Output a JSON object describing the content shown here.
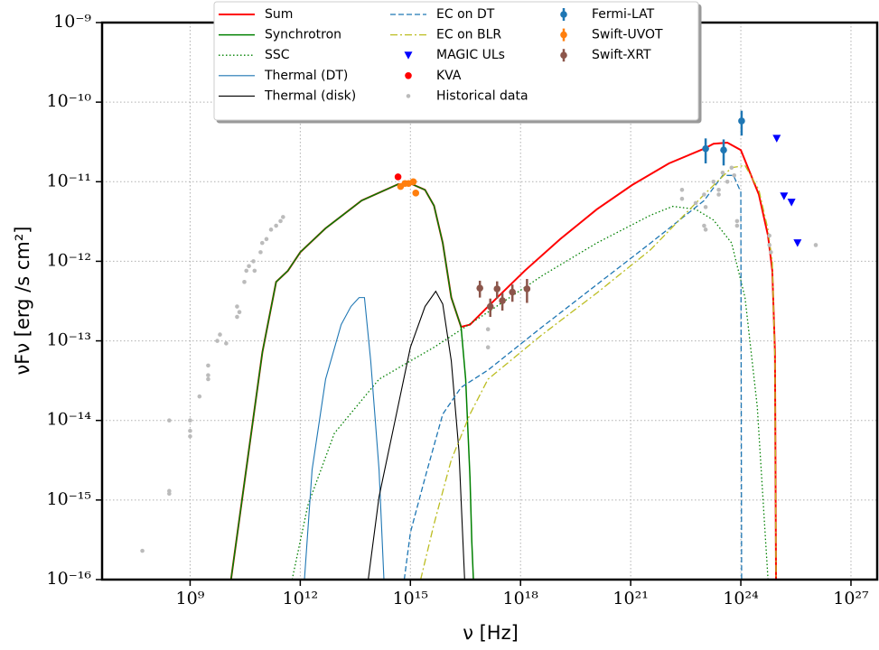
{
  "chart_data": {
    "type": "line",
    "xscale": "log",
    "yscale": "log",
    "grid": true,
    "xlabel": "ν [Hz]",
    "ylabel": "νFν [erg /s cm²]",
    "xlim": [
      4000000.0,
      5.8e+27
    ],
    "ylim": [
      1e-16,
      1e-09
    ],
    "xticks": [
      {
        "value": 1000000000.0,
        "label": "10⁹"
      },
      {
        "value": 1000000000000.0,
        "label": "10¹²"
      },
      {
        "value": 1000000000000000.0,
        "label": "10¹⁵"
      },
      {
        "value": 1e+18,
        "label": "10¹⁸"
      },
      {
        "value": 1e+21,
        "label": "10²¹"
      },
      {
        "value": 1e+24,
        "label": "10²⁴"
      },
      {
        "value": 1e+27,
        "label": "10²⁷"
      }
    ],
    "yticks": [
      {
        "value": 1e-16,
        "label": "10⁻¹⁶"
      },
      {
        "value": 1e-15,
        "label": "10⁻¹⁵"
      },
      {
        "value": 1e-14,
        "label": "10⁻¹⁴"
      },
      {
        "value": 1e-13,
        "label": "10⁻¹³"
      },
      {
        "value": 1e-12,
        "label": "10⁻¹²"
      },
      {
        "value": 1e-11,
        "label": "10⁻¹¹"
      },
      {
        "value": 1e-10,
        "label": "10⁻¹⁰"
      },
      {
        "value": 1e-09,
        "label": "10⁻⁹"
      }
    ],
    "legend": "upper center",
    "series": [
      {
        "name": "Sum",
        "color": "#ff0000",
        "style": "solid",
        "width": 2,
        "x": [
          13000000000.0,
          93000000000.0,
          220000000000.0,
          460000000000.0,
          1000000000000.0,
          4900000000000.0,
          47000000000000.0,
          460000000000000.0,
          1000000000000000.0,
          2500000000000000.0,
          4400000000000000.0,
          7600000000000000.0,
          1.3e+16,
          2.4e+16,
          4.2e+16,
          1.3e+17,
          1.3e+18,
          1.2e+19,
          1.2e+20,
          1.1e+21,
          1.1e+22,
          1e+23,
          1.8e+23,
          4.3e+23,
          1e+24,
          3.1e+24,
          5.5e+24,
          7.2e+24,
          8.5e+24,
          9.1e+24
        ],
        "values": [
          1e-16,
          7.2e-14,
          5.5e-13,
          7.6e-13,
          1.3e-12,
          2.6e-12,
          5.8e-12,
          9.3e-12,
          9.5e-12,
          7.9e-12,
          5e-12,
          1.7e-12,
          3.5e-13,
          1.5e-13,
          1.6e-13,
          2.7e-13,
          7.6e-13,
          1.9e-12,
          4.5e-12,
          9.1e-12,
          1.7e-11,
          2.6e-11,
          3e-11,
          3.1e-11,
          2.5e-11,
          6.9e-12,
          2.1e-12,
          7.6e-13,
          7.2e-14,
          1e-16
        ]
      },
      {
        "name": "Synchrotron",
        "color": "#008000",
        "style": "solid",
        "width": 1.5,
        "x": [
          13000000000.0,
          93000000000.0,
          220000000000.0,
          460000000000.0,
          1000000000000.0,
          4900000000000.0,
          47000000000000.0,
          460000000000000.0,
          1000000000000000.0,
          2500000000000000.0,
          4400000000000000.0,
          7600000000000000.0,
          1.3e+16,
          2.4e+16,
          3.2e+16,
          4.2e+16,
          4.7e+16,
          5.2e+16
        ],
        "values": [
          1e-16,
          7.2e-14,
          5.5e-13,
          7.6e-13,
          1.3e-12,
          2.6e-12,
          5.8e-12,
          9.3e-12,
          9.5e-12,
          7.9e-12,
          5e-12,
          1.7e-12,
          3.5e-13,
          1.5e-13,
          3.3e-14,
          1.9e-15,
          3e-16,
          1e-16
        ]
      },
      {
        "name": "SSC",
        "color": "#008000",
        "style": "dotted",
        "width": 1.3,
        "x": [
          600000000000.0,
          1600000000000.0,
          8500000000000.0,
          140000000000000.0,
          4400000000000000.0,
          1.3e+17,
          3.9e+18,
          1.2e+20,
          3.5e+21,
          1.4e+22,
          5.9e+22,
          1.8e+23,
          5.6e+23,
          1.3e+24,
          2.8e+24,
          5.5e+24
        ],
        "values": [
          1e-16,
          8.5e-16,
          6.9e-15,
          3.3e-14,
          8.3e-14,
          2.3e-13,
          6.6e-13,
          1.7e-12,
          3.8e-12,
          4.9e-12,
          4.5e-12,
          3.3e-12,
          1.7e-12,
          3.5e-13,
          1.5e-14,
          1e-16
        ]
      },
      {
        "name": "Thermal (DT)",
        "color": "#1f77b4",
        "style": "solid",
        "width": 1.1,
        "x": [
          1300000000000.0,
          2100000000000.0,
          4900000000000.0,
          13000000000000.0,
          24000000000000.0,
          40000000000000.0,
          56000000000000.0,
          83000000000000.0,
          140000000000000.0,
          190000000000000.0
        ],
        "values": [
          1e-16,
          2.4e-15,
          3.3e-14,
          1.6e-13,
          2.7e-13,
          3.5e-13,
          3.5e-13,
          5.6e-14,
          2.4e-15,
          1e-16
        ]
      },
      {
        "name": "Thermal (disk)",
        "color": "#000000",
        "style": "solid",
        "width": 1.1,
        "x": [
          71000000000000.0,
          140000000000000.0,
          460000000000000.0,
          1000000000000000.0,
          2500000000000000.0,
          4900000000000000.0,
          7600000000000000.0,
          1.3e+16,
          2.1e+16,
          3e+16
        ],
        "values": [
          1e-16,
          1.1e-15,
          1.5e-14,
          8.3e-14,
          2.7e-13,
          4.2e-13,
          2.9e-13,
          5.6e-14,
          4.1e-15,
          1e-16
        ]
      },
      {
        "name": "EC on DT",
        "color": "#1f77b4",
        "style": "dashed",
        "width": 1.3,
        "x": [
          680000000000000.0,
          1000000000000000.0,
          2500000000000000.0,
          7600000000000000.0,
          2.4e+16,
          1.3e+17,
          3.9e+18,
          1.2e+20,
          3.5e+21,
          1e+23,
          3.2e+23,
          6.3e+23,
          1e+24,
          1.05e+24
        ],
        "values": [
          1e-16,
          3.9e-16,
          1.9e-15,
          1.2e-14,
          2.6e-14,
          4.3e-14,
          1.5e-13,
          5.1e-13,
          1.7e-12,
          5.8e-12,
          1.2e-11,
          1.2e-11,
          7.4e-12,
          1e-16
        ]
      },
      {
        "name": "EC on BLR",
        "color": "#bcbd22",
        "style": "dashdot",
        "width": 1.3,
        "x": [
          1900000000000000.0,
          4400000000000000.0,
          1.3e+16,
          4.2e+16,
          1.3e+17,
          3.9e+18,
          1.2e+20,
          3.5e+21,
          1e+23,
          5.6e+23,
          1.3e+24,
          3.1e+24,
          5.5e+24,
          7.2e+24,
          8.5e+24,
          9.1e+24
        ],
        "values": [
          1e-16,
          5e-16,
          3.2e-15,
          1.2e-14,
          3.3e-14,
          1.2e-13,
          4e-13,
          1.4e-12,
          6.9e-12,
          1.5e-11,
          1.6e-11,
          7.9e-12,
          2.5e-12,
          9.8e-13,
          5.6e-14,
          1e-16
        ]
      },
      {
        "name": "MAGIC ULs",
        "color": "#0000ff",
        "marker": "triangle-down",
        "x": [
          9.5e+24,
          1.5e+25,
          2.4e+25,
          3.5e+25
        ],
        "values": [
          3.5e-11,
          6.6e-12,
          5.5e-12,
          1.7e-12
        ]
      },
      {
        "name": "KVA",
        "color": "#ff0000",
        "marker": "circle",
        "x": [
          460000000000000.0
        ],
        "values": [
          1.15e-11
        ]
      },
      {
        "name": "Historical data",
        "color": "#bbbbbb",
        "marker": "dot",
        "x": [
          50000000.0,
          270000000.0,
          270000000.0,
          270000000.0,
          1000000000.0,
          1000000000.0,
          1000000000.0,
          1800000000.0,
          3100000000.0,
          3100000000.0,
          3100000000.0,
          5500000000.0,
          6500000000.0,
          9600000000.0,
          19000000000.0,
          19000000000.0,
          22000000000.0,
          30000000000.0,
          34000000000.0,
          40000000000.0,
          53000000000.0,
          57000000000.0,
          83000000000.0,
          92000000000.0,
          120000000000.0,
          160000000000.0,
          220000000000.0,
          290000000000.0,
          340000000000.0,
          1.3e+17,
          1.3e+17,
          2.5e+22,
          2.5e+22,
          5.9e+22,
          1e+23,
          1e+23,
          1.1e+23,
          1.1e+23,
          1.8e+23,
          2.5e+23,
          2.5e+23,
          3.2e+23,
          4.3e+23,
          5.6e+23,
          6.6e+23,
          7.9e+23,
          7.9e+23,
          6e+24,
          6e+24,
          6.6e+24,
          1.1e+26
        ],
        "values": [
          2.3e-16,
          1e-14,
          1.3e-15,
          1.2e-15,
          1e-14,
          7.4e-15,
          6.3e-15,
          2e-14,
          4.9e-14,
          3.7e-14,
          3.3e-14,
          1e-13,
          1.2e-13,
          9.3e-14,
          2e-13,
          2.7e-13,
          2.3e-13,
          5.5e-13,
          7.6e-13,
          8.7e-13,
          1e-12,
          7.6e-13,
          1.3e-12,
          1.7e-12,
          1.9e-12,
          2.5e-12,
          2.8e-12,
          3.2e-12,
          3.6e-12,
          1.4e-13,
          8.3e-14,
          7.9e-12,
          6.1e-12,
          5.4e-12,
          6.9e-12,
          2.8e-12,
          2.5e-12,
          4.8e-12,
          1e-11,
          7.9e-12,
          6.9e-12,
          1.3e-11,
          1e-11,
          1.5e-11,
          1.2e-11,
          3.2e-12,
          2.8e-12,
          2.1e-12,
          1.6e-12,
          1.3e-12,
          1.6e-12
        ]
      },
      {
        "name": "Fermi-LAT",
        "color": "#1f77b4",
        "marker": "errorbar",
        "x": [
          1.1e+23,
          3.4e+23,
          1.05e+24
        ],
        "values": [
          2.6e-11,
          2.5e-11,
          5.8e-11
        ],
        "errors": [
          9e-12,
          9e-12,
          2e-11
        ]
      },
      {
        "name": "Swift-UVOT",
        "color": "#ff7f0e",
        "marker": "errorbar",
        "x": [
          540000000000000.0,
          710000000000000.0,
          890000000000000.0,
          1200000000000000.0,
          1400000000000000.0
        ],
        "values": [
          8.7e-12,
          9.5e-12,
          9.5e-12,
          1e-11,
          7.2e-12
        ]
      },
      {
        "name": "Swift-XRT",
        "color": "#8c564b",
        "marker": "errorbar",
        "x": [
          7.8e+16,
          1.5e+17,
          2.3e+17,
          3.2e+17,
          6e+17,
          1.5e+18
        ],
        "values": [
          4.6e-13,
          2.7e-13,
          4.5e-13,
          3.2e-13,
          4.1e-13,
          4.5e-13
        ],
        "errors": [
          1.1e-13,
          7e-14,
          1.1e-13,
          8e-14,
          1e-13,
          1.5e-13
        ]
      }
    ]
  }
}
